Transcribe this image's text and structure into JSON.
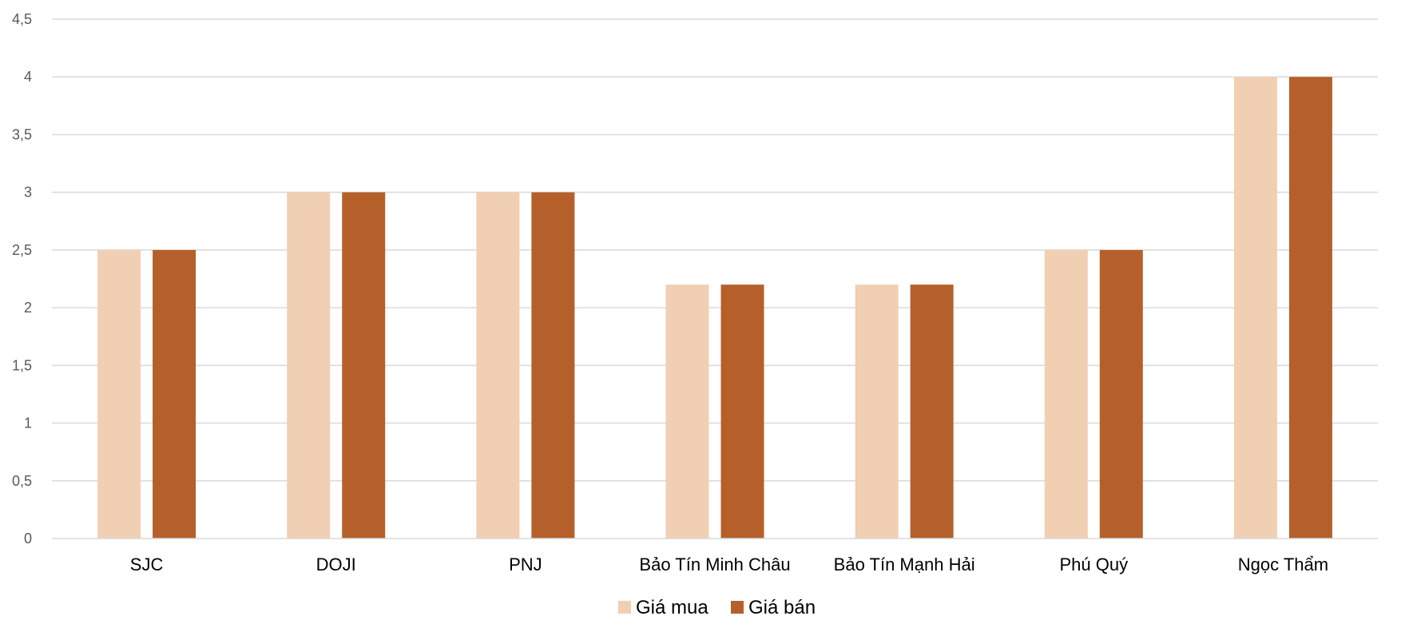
{
  "chart_data": {
    "type": "bar",
    "title": "",
    "xlabel": "",
    "ylabel": "",
    "categories": [
      "SJC",
      "DOJI",
      "PNJ",
      "Bảo Tín Minh Châu",
      "Bảo Tín Mạnh Hải",
      "Phú Quý",
      "Ngọc Thẩm"
    ],
    "series": [
      {
        "name": "Giá mua",
        "color": "#f1cfb3",
        "values": [
          2.5,
          3,
          3,
          2.2,
          2.2,
          2.5,
          4
        ]
      },
      {
        "name": "Giá bán",
        "color": "#b5602a",
        "values": [
          2.5,
          3,
          3,
          2.2,
          2.2,
          2.5,
          4
        ]
      }
    ],
    "ylim": [
      0,
      4.5
    ],
    "yticks": [
      0,
      0.5,
      1,
      1.5,
      2,
      2.5,
      3,
      3.5,
      4,
      4.5
    ],
    "ytick_labels": [
      "0",
      "0,5",
      "1",
      "1,5",
      "2",
      "2,5",
      "3",
      "3,5",
      "4",
      "4,5"
    ],
    "grid": true,
    "gridline_color": "#d9d9d9",
    "legend_position": "bottom"
  }
}
